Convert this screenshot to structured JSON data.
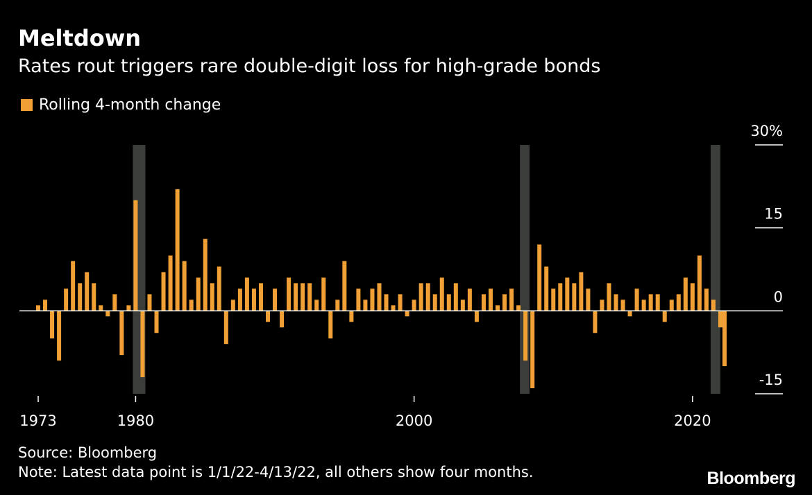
{
  "header": {
    "title": "Meltdown",
    "subtitle": "Rates rout triggers rare double-digit loss for high-grade bonds"
  },
  "footer": {
    "source": "Source: Bloomberg",
    "note": "Note: Latest data point is 1/1/22-4/13/22, all others show four months.",
    "logo": "Bloomberg"
  },
  "colors": {
    "background": "#000000",
    "bar": "#F0A035",
    "recession_band": "#3A3D3A",
    "zero_line": "#FFFFFF"
  },
  "chart_data": {
    "type": "bar",
    "title": "Meltdown",
    "subtitle": "Rates rout triggers rare double-digit loss for high-grade bonds",
    "ylim": [
      -15,
      30
    ],
    "y_ticks": [
      {
        "value": 30,
        "label": "30%"
      },
      {
        "value": 15,
        "label": "15"
      },
      {
        "value": 0,
        "label": "0"
      },
      {
        "value": -15,
        "label": "-15"
      }
    ],
    "x_ticks": [
      {
        "value": 1973,
        "label": "1973"
      },
      {
        "value": 1980,
        "label": "1980"
      },
      {
        "value": 2000,
        "label": "2000"
      },
      {
        "value": 2020,
        "label": "2020"
      }
    ],
    "xlim": [
      1973,
      2022.3
    ],
    "axis_side": "right",
    "legend_position": "top-left",
    "series": [
      {
        "name": "Rolling 4-month change",
        "color": "#F0A035",
        "x": [
          1973.0,
          1973.5,
          1974.0,
          1974.5,
          1975.0,
          1975.5,
          1976.0,
          1976.5,
          1977.0,
          1977.5,
          1978.0,
          1978.5,
          1979.0,
          1979.5,
          1980.0,
          1980.5,
          1981.0,
          1981.5,
          1982.0,
          1982.5,
          1983.0,
          1983.5,
          1984.0,
          1984.5,
          1985.0,
          1985.5,
          1986.0,
          1986.5,
          1987.0,
          1987.5,
          1988.0,
          1988.5,
          1989.0,
          1989.5,
          1990.0,
          1990.5,
          1991.0,
          1991.5,
          1992.0,
          1992.5,
          1993.0,
          1993.5,
          1994.0,
          1994.5,
          1995.0,
          1995.5,
          1996.0,
          1996.5,
          1997.0,
          1997.5,
          1998.0,
          1998.5,
          1999.0,
          1999.5,
          2000.0,
          2000.5,
          2001.0,
          2001.5,
          2002.0,
          2002.5,
          2003.0,
          2003.5,
          2004.0,
          2004.5,
          2005.0,
          2005.5,
          2006.0,
          2006.5,
          2007.0,
          2007.5,
          2008.0,
          2008.5,
          2009.0,
          2009.5,
          2010.0,
          2010.5,
          2011.0,
          2011.5,
          2012.0,
          2012.5,
          2013.0,
          2013.5,
          2014.0,
          2014.5,
          2015.0,
          2015.5,
          2016.0,
          2016.5,
          2017.0,
          2017.5,
          2018.0,
          2018.5,
          2019.0,
          2019.5,
          2020.0,
          2020.5,
          2021.0,
          2021.5,
          2022.0,
          2022.3
        ],
        "values": [
          1,
          2,
          -5,
          -9,
          4,
          9,
          5,
          7,
          5,
          1,
          -1,
          3,
          -8,
          1,
          20,
          -12,
          3,
          -4,
          7,
          10,
          22,
          9,
          2,
          6,
          13,
          5,
          8,
          -6,
          2,
          4,
          6,
          4,
          5,
          -2,
          4,
          -3,
          6,
          5,
          5,
          5,
          2,
          6,
          -5,
          2,
          9,
          -2,
          4,
          2,
          4,
          5,
          3,
          1,
          3,
          -1,
          2,
          5,
          5,
          3,
          6,
          3,
          5,
          2,
          4,
          -2,
          3,
          4,
          1,
          3,
          4,
          1,
          -9,
          -14,
          12,
          8,
          4,
          5,
          6,
          5,
          7,
          4,
          -4,
          2,
          5,
          3,
          2,
          -1,
          4,
          2,
          3,
          3,
          -2,
          2,
          3,
          6,
          5,
          10,
          4,
          2,
          -3,
          -10
        ]
      }
    ],
    "recession_bands": [
      [
        1979.8,
        1980.7
      ],
      [
        2007.6,
        2008.2
      ],
      [
        2021.3,
        2021.7
      ]
    ]
  }
}
